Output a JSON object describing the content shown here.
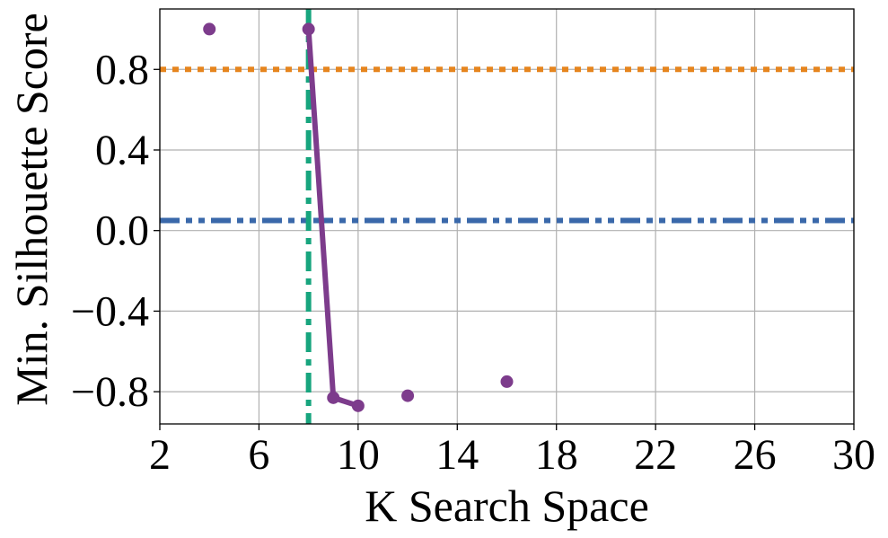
{
  "chart_data": {
    "type": "line",
    "title": "",
    "xlabel": "K Search Space",
    "ylabel": "Min. Silhouette Score",
    "xlim": [
      2,
      30
    ],
    "ylim": [
      -0.96,
      1.1
    ],
    "x_ticks": [
      2,
      6,
      10,
      14,
      18,
      22,
      26,
      30
    ],
    "x_tick_labels": [
      "2",
      "6",
      "10",
      "14",
      "18",
      "22",
      "26",
      "30"
    ],
    "y_ticks": [
      -0.8,
      -0.4,
      0.0,
      0.4,
      0.8
    ],
    "y_tick_labels": [
      "−0.8",
      "−0.4",
      "0.0",
      "0.4",
      "0.8"
    ],
    "grid": true,
    "series": [
      {
        "style": "line-with-markers",
        "color": "#7d3c8c",
        "points": [
          {
            "x": 8,
            "y": 1.0
          },
          {
            "x": 9,
            "y": -0.83
          },
          {
            "x": 10,
            "y": -0.87
          }
        ]
      },
      {
        "style": "markers-only",
        "color": "#7d3c8c",
        "points": [
          {
            "x": 4,
            "y": 1.0
          },
          {
            "x": 12,
            "y": -0.82
          },
          {
            "x": 16,
            "y": -0.75
          }
        ]
      }
    ],
    "reference_lines": [
      {
        "orientation": "horizontal",
        "value": 0.8,
        "color": "#e6851e",
        "dash": "dotted"
      },
      {
        "orientation": "horizontal",
        "value": 0.05,
        "color": "#3a68aa",
        "dash": "dash-dot-dot"
      },
      {
        "orientation": "vertical",
        "value": 8,
        "color": "#17a57e",
        "dash": "dash-dot"
      }
    ]
  }
}
